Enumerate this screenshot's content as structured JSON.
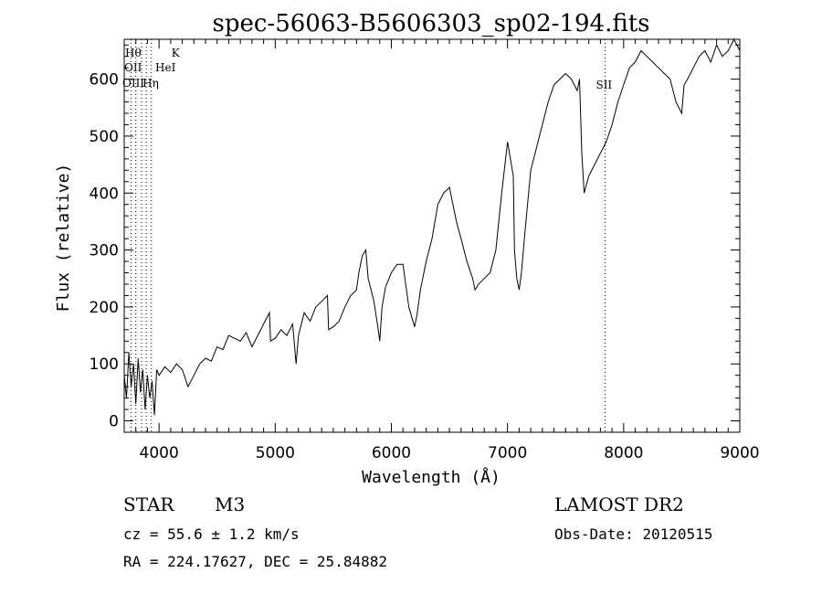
{
  "chart_data": {
    "type": "line",
    "title": "spec-56063-B5606303_sp02-194.fits",
    "xlabel": "Wavelength (Å)",
    "ylabel": "Flux (relative)",
    "xlim": [
      3700,
      9000
    ],
    "ylim": [
      -20,
      670
    ],
    "xticks": [
      4000,
      5000,
      6000,
      7000,
      8000,
      9000
    ],
    "yticks": [
      0,
      100,
      200,
      300,
      400,
      500,
      600
    ],
    "grid": false,
    "line_color": "#000000",
    "series": [
      {
        "x": [
          3700,
          3720,
          3740,
          3760,
          3780,
          3800,
          3820,
          3840,
          3860,
          3880,
          3900,
          3920,
          3940,
          3960,
          3980,
          4000,
          4050,
          4100,
          4150,
          4200,
          4250,
          4300,
          4350,
          4400,
          4450,
          4500,
          4550,
          4600,
          4650,
          4700,
          4750,
          4800,
          4850,
          4900,
          4950,
          4960,
          5000,
          5050,
          5100,
          5150,
          5180,
          5200,
          5250,
          5300,
          5350,
          5400,
          5450,
          5460,
          5500,
          5550,
          5600,
          5650,
          5700,
          5720,
          5750,
          5780,
          5800,
          5850,
          5880,
          5900,
          5920,
          5950,
          6000,
          6050,
          6100,
          6150,
          6200,
          6220,
          6250,
          6300,
          6350,
          6400,
          6450,
          6500,
          6540,
          6560,
          6600,
          6650,
          6700,
          6720,
          6750,
          6800,
          6850,
          6900,
          6950,
          7000,
          7050,
          7060,
          7080,
          7100,
          7120,
          7150,
          7200,
          7250,
          7300,
          7350,
          7400,
          7450,
          7500,
          7550,
          7600,
          7620,
          7640,
          7660,
          7700,
          7750,
          7800,
          7850,
          7900,
          7950,
          8000,
          8050,
          8100,
          8150,
          8200,
          8250,
          8300,
          8350,
          8400,
          8450,
          8500,
          8520,
          8550,
          8600,
          8650,
          8700,
          8750,
          8800,
          8850,
          8900,
          8950,
          9000
        ],
        "y": [
          80,
          40,
          120,
          60,
          100,
          30,
          110,
          50,
          90,
          20,
          80,
          40,
          70,
          10,
          90,
          80,
          95,
          85,
          100,
          90,
          60,
          80,
          100,
          110,
          105,
          130,
          125,
          150,
          145,
          140,
          155,
          130,
          150,
          170,
          190,
          140,
          145,
          160,
          150,
          170,
          100,
          150,
          190,
          175,
          200,
          210,
          220,
          160,
          165,
          175,
          200,
          220,
          230,
          260,
          290,
          300,
          250,
          210,
          170,
          140,
          200,
          235,
          260,
          275,
          275,
          200,
          165,
          185,
          230,
          280,
          320,
          380,
          400,
          410,
          370,
          350,
          320,
          280,
          250,
          230,
          240,
          250,
          260,
          300,
          400,
          490,
          430,
          300,
          250,
          230,
          260,
          330,
          440,
          480,
          520,
          560,
          590,
          600,
          610,
          600,
          580,
          600,
          470,
          400,
          430,
          450,
          470,
          490,
          520,
          560,
          590,
          620,
          630,
          650,
          640,
          630,
          620,
          610,
          600,
          560,
          540,
          590,
          600,
          620,
          640,
          650,
          630,
          660,
          640,
          650,
          670,
          650
        ]
      }
    ],
    "annotations": [
      {
        "label": "Hθ",
        "x": 3798
      },
      {
        "label": "K",
        "x": 3934
      },
      {
        "label": "OII",
        "x": 3727
      },
      {
        "label": "HeI",
        "x": 3889
      },
      {
        "label": "OIII",
        "x": 3727
      },
      {
        "label": "Hη",
        "x": 3835
      },
      {
        "label": "SII",
        "x": 7840
      }
    ],
    "extra_line_x": [
      3760,
      3800,
      3850,
      3890,
      3934
    ]
  },
  "info": {
    "object_class": "STAR",
    "subclass": "M3",
    "survey": "LAMOST DR2",
    "redshift_text": "cz = 55.6 ± 1.2 km/s",
    "obs_date_text": "Obs-Date: 20120515",
    "coords_text": "RA = 224.17627, DEC =  25.84882"
  }
}
